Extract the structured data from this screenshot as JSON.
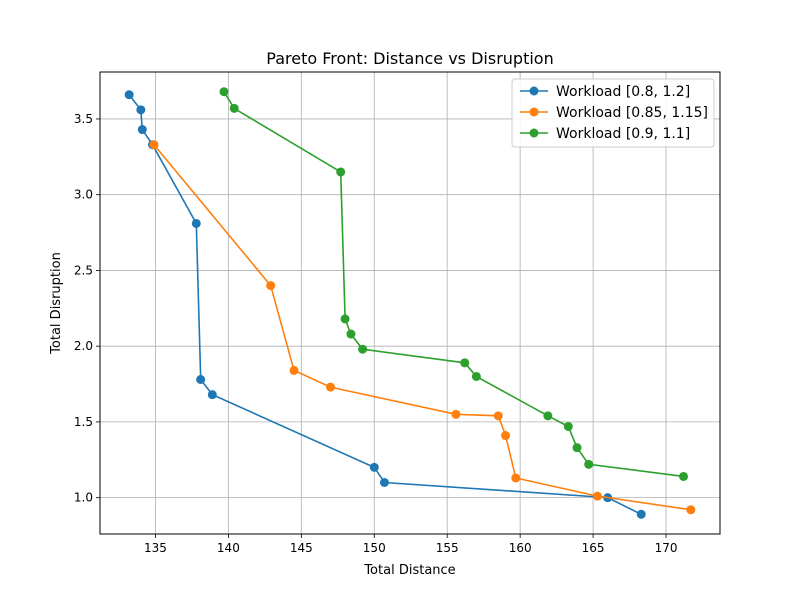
{
  "chart_data": {
    "type": "line",
    "title": "Pareto Front: Distance vs Disruption",
    "xlabel": "Total Distance",
    "ylabel": "Total Disruption",
    "xlim": [
      131.2,
      173.7
    ],
    "ylim": [
      0.76,
      3.81
    ],
    "xticks": [
      135,
      140,
      145,
      150,
      155,
      160,
      165,
      170
    ],
    "yticks": [
      1.0,
      1.5,
      2.0,
      2.5,
      3.0,
      3.5
    ],
    "grid": true,
    "legend_position": "top-right",
    "series": [
      {
        "name": "Workload [0.8, 1.2]",
        "color": "#1f77b4",
        "points": [
          [
            133.2,
            3.66
          ],
          [
            134.0,
            3.56
          ],
          [
            134.1,
            3.43
          ],
          [
            134.8,
            3.33
          ],
          [
            137.8,
            2.81
          ],
          [
            138.1,
            1.78
          ],
          [
            138.9,
            1.68
          ],
          [
            150.0,
            1.2
          ],
          [
            150.7,
            1.1
          ],
          [
            166.0,
            1.0
          ],
          [
            168.3,
            0.89
          ]
        ]
      },
      {
        "name": "Workload [0.85, 1.15]",
        "color": "#ff7f0e",
        "points": [
          [
            134.9,
            3.33
          ],
          [
            142.9,
            2.4
          ],
          [
            144.5,
            1.84
          ],
          [
            147.0,
            1.73
          ],
          [
            155.6,
            1.55
          ],
          [
            158.5,
            1.54
          ],
          [
            159.0,
            1.41
          ],
          [
            159.7,
            1.13
          ],
          [
            165.3,
            1.01
          ],
          [
            171.7,
            0.92
          ]
        ]
      },
      {
        "name": "Workload [0.9, 1.1]",
        "color": "#2ca02c",
        "points": [
          [
            139.7,
            3.68
          ],
          [
            140.4,
            3.57
          ],
          [
            147.7,
            3.15
          ],
          [
            148.0,
            2.18
          ],
          [
            148.4,
            2.08
          ],
          [
            149.2,
            1.98
          ],
          [
            156.2,
            1.89
          ],
          [
            157.0,
            1.8
          ],
          [
            161.9,
            1.54
          ],
          [
            163.3,
            1.47
          ],
          [
            163.9,
            1.33
          ],
          [
            164.7,
            1.22
          ],
          [
            171.2,
            1.14
          ]
        ]
      }
    ]
  }
}
